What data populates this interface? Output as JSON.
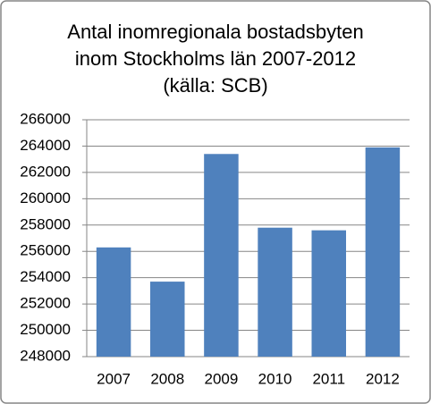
{
  "chart_data": {
    "type": "bar",
    "title": [
      "Antal inomregionala bostadsbyten",
      "inom Stockholms län 2007-2012",
      "(källa: SCB)"
    ],
    "categories": [
      "2007",
      "2008",
      "2009",
      "2010",
      "2011",
      "2012"
    ],
    "values": [
      256300,
      253700,
      263400,
      257800,
      257600,
      263900
    ],
    "color": "#4f81bd",
    "ylim": [
      248000,
      266000
    ],
    "yticks": [
      248000,
      250000,
      252000,
      254000,
      256000,
      258000,
      260000,
      262000,
      264000,
      266000
    ],
    "grid": true
  }
}
